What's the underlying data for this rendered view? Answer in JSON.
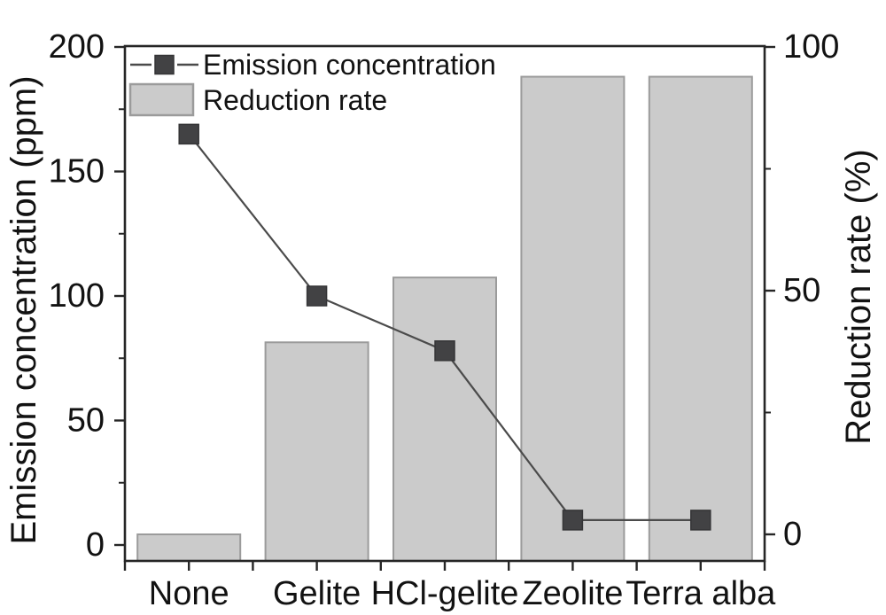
{
  "chart_data": {
    "type": "bar",
    "combo": "bar+line dual-axis",
    "title": "",
    "categories": [
      "None",
      "Gelite",
      "HCl-gelite",
      "Zeolite",
      "Terra alba"
    ],
    "series": [
      {
        "name": "Emission concentration",
        "type": "line",
        "axis": "left",
        "marker": "square",
        "values": [
          165,
          100,
          78,
          10,
          10
        ],
        "marker_color": "#424244",
        "marker_edge": "#353537",
        "line_color": "#4b4b4b"
      },
      {
        "name": "Reduction rate",
        "type": "bar",
        "axis": "right",
        "values": [
          0,
          39.4,
          52.7,
          93.9,
          93.9
        ],
        "fill": "#cbcbcb",
        "border": "#9b9b9b"
      }
    ],
    "left_axis": {
      "label": "Emission concentration (ppm)",
      "major_ticks": [
        0,
        50,
        100,
        150,
        200
      ],
      "minor_ticks": [
        25,
        75,
        125,
        175
      ],
      "range": [
        0,
        200
      ]
    },
    "right_axis": {
      "label": "Reduction rate (%)",
      "major_ticks": [
        0,
        50,
        100
      ],
      "minor_ticks": [
        25,
        75
      ],
      "range": [
        0,
        100
      ]
    },
    "legend": {
      "position": "top-left-inside",
      "entries": [
        "Emission concentration",
        "Reduction rate"
      ]
    },
    "grid": false,
    "axis_color": "#262626",
    "text_color": "#121212",
    "background": "#ffffff"
  }
}
